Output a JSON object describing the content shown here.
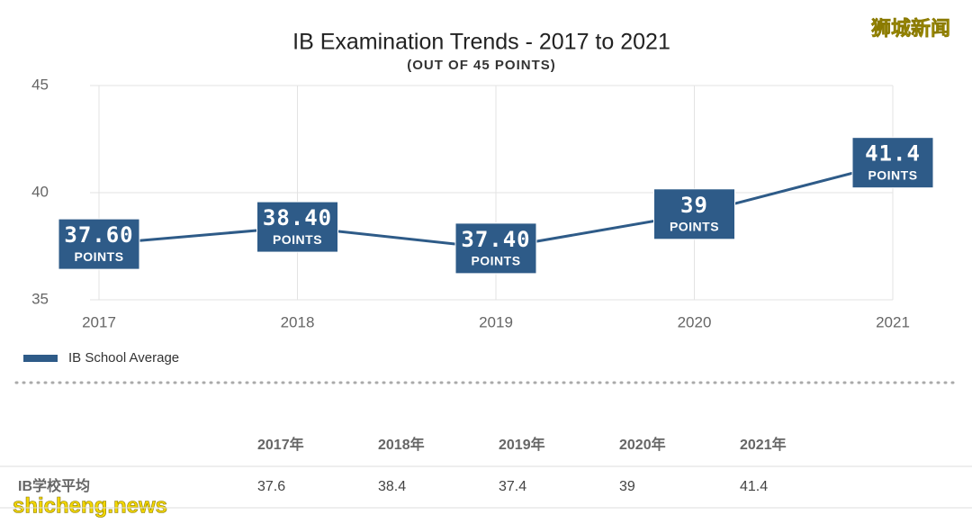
{
  "chart_data": {
    "type": "line",
    "title": "IB Examination Trends  - 2017 to 2021",
    "subtitle": "(OUT OF 45 POINTS)",
    "categories": [
      "2017",
      "2018",
      "2019",
      "2020",
      "2021"
    ],
    "series": [
      {
        "name": "IB School Average",
        "color": "#2e5b88",
        "values": [
          37.6,
          38.4,
          37.4,
          39,
          41.4
        ],
        "value_labels": [
          "37.60",
          "38.40",
          "37.40",
          "39",
          "41.4"
        ]
      }
    ],
    "value_label_unit": "POINTS",
    "ylim": [
      35,
      45
    ],
    "yticks": [
      35,
      40,
      45
    ],
    "grid": true,
    "legend": "bottom-left"
  },
  "table": {
    "columns": [
      "2017年",
      "2018年",
      "2019年",
      "2020年",
      "2021年"
    ],
    "rows": [
      {
        "label": "IB学校平均",
        "values": [
          37.6,
          38.4,
          37.4,
          39,
          41.4
        ]
      }
    ]
  },
  "watermarks": {
    "top_right": "狮城新闻",
    "bottom_left": "shicheng.news"
  }
}
